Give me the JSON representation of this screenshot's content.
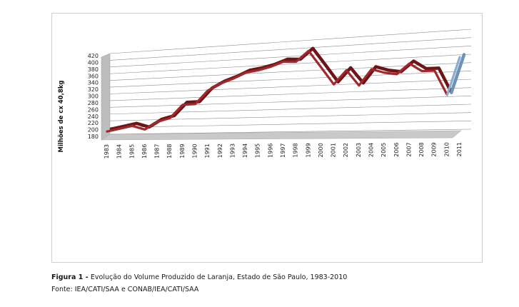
{
  "figure": {
    "caption_label": "Figura 1",
    "caption_sep": " - ",
    "caption_text": "Evolução do Volume Produzido de Laranja, Estado de São Paulo, 1983-2010",
    "source": "Fonte: IEA/CATI/SAA e CONAB/IEA/CATI/SAA"
  },
  "chart_data": {
    "type": "line",
    "title": "",
    "xlabel": "",
    "ylabel": "Milhões de cx 40,8kg",
    "ylim": [
      180,
      420
    ],
    "y_ticks": [
      180,
      200,
      220,
      240,
      260,
      280,
      300,
      320,
      340,
      360,
      380,
      400,
      420
    ],
    "x": [
      "1983",
      "1984",
      "1985",
      "1986",
      "1987",
      "1988",
      "1989",
      "1990",
      "1991",
      "1992",
      "1993",
      "1994",
      "1995",
      "1996",
      "1997",
      "1998",
      "1999",
      "2000",
      "2001",
      "2002",
      "2003",
      "2004",
      "2005",
      "2006",
      "2007",
      "2008",
      "2009",
      "2010",
      "2011"
    ],
    "grid": true,
    "three_d": true,
    "series": [
      {
        "color": "#a0282c",
        "x": [
          "1983",
          "1984",
          "1985",
          "1986",
          "1987",
          "1988",
          "1989",
          "1990",
          "1991",
          "1992",
          "1993",
          "1994",
          "1995",
          "1996",
          "1997",
          "1998",
          "1999",
          "2000",
          "2001",
          "2002",
          "2003",
          "2004",
          "2005",
          "2006",
          "2007",
          "2008",
          "2009",
          "2010"
        ],
        "values": [
          188,
          196,
          204,
          193,
          215,
          225,
          262,
          263,
          300,
          318,
          330,
          345,
          350,
          358,
          370,
          368,
          395,
          350,
          305,
          340,
          300,
          340,
          330,
          325,
          350,
          330,
          330,
          270
        ]
      },
      {
        "color": "#8aaed0",
        "x": [
          "2010",
          "2011"
        ],
        "values": [
          270,
          360
        ]
      }
    ]
  }
}
